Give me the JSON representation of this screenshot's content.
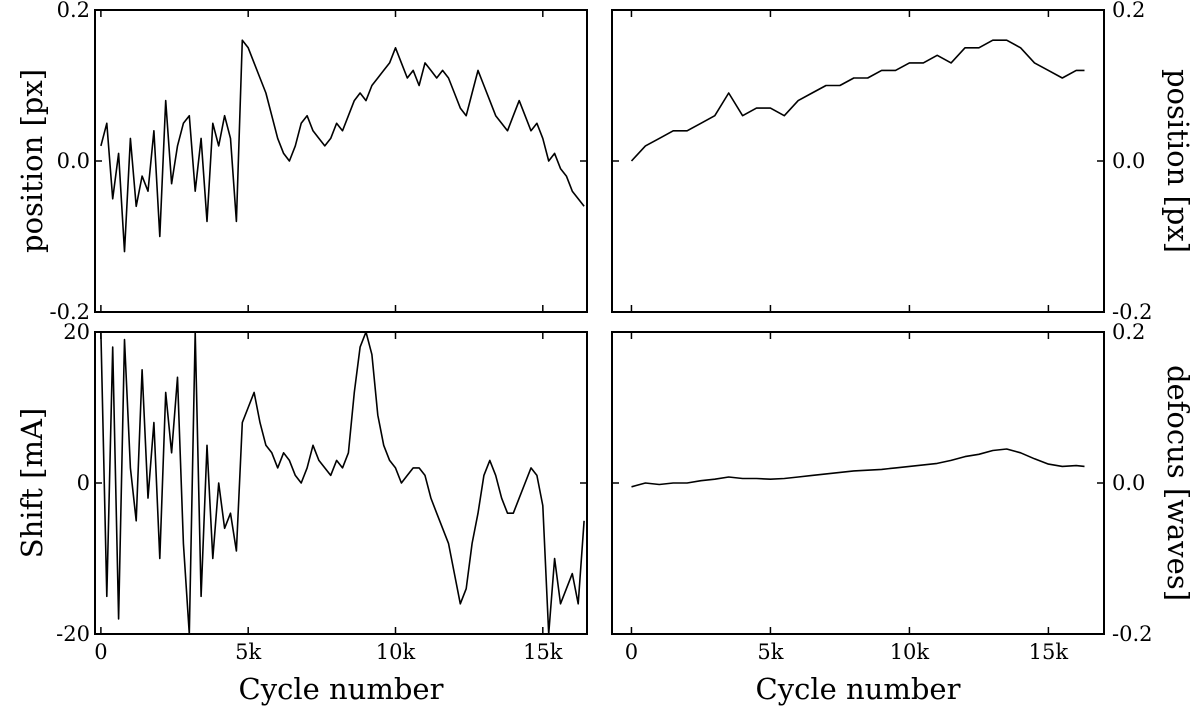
{
  "chart_data": [
    {
      "type": "line",
      "panel": "top-left",
      "xlabel": "",
      "ylabel": "position [px]",
      "xlim": [
        -200,
        16500
      ],
      "ylim": [
        -0.2,
        0.2
      ],
      "yticks": [
        {
          "v": -0.2,
          "label": "-0.2"
        },
        {
          "v": 0.0,
          "label": "0.0"
        },
        {
          "v": 0.2,
          "label": "0.2"
        }
      ],
      "xticks": [
        {
          "v": 0,
          "label": ""
        },
        {
          "v": 5000,
          "label": ""
        },
        {
          "v": 10000,
          "label": ""
        },
        {
          "v": 15000,
          "label": ""
        }
      ],
      "series": [
        {
          "x": [
            0,
            200,
            400,
            600,
            800,
            1000,
            1200,
            1400,
            1600,
            1800,
            2000,
            2200,
            2400,
            2600,
            2800,
            3000,
            3200,
            3400,
            3600,
            3800,
            4000,
            4200,
            4400,
            4600,
            4800,
            5000,
            5200,
            5400,
            5600,
            5800,
            6000,
            6200,
            6400,
            6600,
            6800,
            7000,
            7200,
            7400,
            7600,
            7800,
            8000,
            8200,
            8400,
            8600,
            8800,
            9000,
            9200,
            9400,
            9600,
            9800,
            10000,
            10200,
            10400,
            10600,
            10800,
            11000,
            11200,
            11400,
            11600,
            11800,
            12000,
            12200,
            12400,
            12600,
            12800,
            13000,
            13200,
            13400,
            13600,
            13800,
            14000,
            14200,
            14400,
            14600,
            14800,
            15000,
            15200,
            15400,
            15600,
            15800,
            16000,
            16200,
            16400
          ],
          "y": [
            0.02,
            0.05,
            -0.05,
            0.01,
            -0.12,
            0.03,
            -0.06,
            -0.02,
            -0.04,
            0.04,
            -0.1,
            0.08,
            -0.03,
            0.02,
            0.05,
            0.06,
            -0.04,
            0.03,
            -0.08,
            0.05,
            0.02,
            0.06,
            0.03,
            -0.08,
            0.16,
            0.15,
            0.13,
            0.11,
            0.09,
            0.06,
            0.03,
            0.01,
            0.0,
            0.02,
            0.05,
            0.06,
            0.04,
            0.03,
            0.02,
            0.03,
            0.05,
            0.04,
            0.06,
            0.08,
            0.09,
            0.08,
            0.1,
            0.11,
            0.12,
            0.13,
            0.15,
            0.13,
            0.11,
            0.12,
            0.1,
            0.13,
            0.12,
            0.11,
            0.12,
            0.11,
            0.09,
            0.07,
            0.06,
            0.09,
            0.12,
            0.1,
            0.08,
            0.06,
            0.05,
            0.04,
            0.06,
            0.08,
            0.06,
            0.04,
            0.05,
            0.03,
            0.0,
            0.01,
            -0.01,
            -0.02,
            -0.04,
            -0.05,
            -0.06
          ]
        }
      ]
    },
    {
      "type": "line",
      "panel": "top-right",
      "xlabel": "",
      "ylabel": "position [px]",
      "xlim": [
        -700,
        17000
      ],
      "ylim": [
        -0.2,
        0.2
      ],
      "yticks": [
        {
          "v": -0.2,
          "label": "-0.2"
        },
        {
          "v": 0.0,
          "label": "0.0"
        },
        {
          "v": 0.2,
          "label": "0.2"
        }
      ],
      "xticks": [
        {
          "v": 0,
          "label": ""
        },
        {
          "v": 5000,
          "label": ""
        },
        {
          "v": 10000,
          "label": ""
        },
        {
          "v": 15000,
          "label": ""
        }
      ],
      "series": [
        {
          "x": [
            0,
            500,
            1000,
            1500,
            2000,
            2500,
            3000,
            3500,
            4000,
            4500,
            5000,
            5500,
            6000,
            6500,
            7000,
            7500,
            8000,
            8500,
            9000,
            9500,
            10000,
            10500,
            11000,
            11500,
            12000,
            12500,
            13000,
            13500,
            14000,
            14500,
            15000,
            15500,
            16000,
            16300
          ],
          "y": [
            0.0,
            0.02,
            0.03,
            0.04,
            0.04,
            0.05,
            0.06,
            0.09,
            0.06,
            0.07,
            0.07,
            0.06,
            0.08,
            0.09,
            0.1,
            0.1,
            0.11,
            0.11,
            0.12,
            0.12,
            0.13,
            0.13,
            0.14,
            0.13,
            0.15,
            0.15,
            0.16,
            0.16,
            0.15,
            0.13,
            0.12,
            0.11,
            0.12,
            0.12
          ]
        }
      ]
    },
    {
      "type": "line",
      "panel": "bottom-left",
      "xlabel": "Cycle number",
      "ylabel": "Shift [mA]",
      "xlim": [
        -200,
        16500
      ],
      "ylim": [
        -20,
        20
      ],
      "yticks": [
        {
          "v": -20,
          "label": "-20"
        },
        {
          "v": 0,
          "label": "0"
        },
        {
          "v": 20,
          "label": "20"
        }
      ],
      "xticks": [
        {
          "v": 0,
          "label": "0"
        },
        {
          "v": 5000,
          "label": "5k"
        },
        {
          "v": 10000,
          "label": "10k"
        },
        {
          "v": 15000,
          "label": "15k"
        }
      ],
      "series": [
        {
          "x": [
            0,
            200,
            400,
            600,
            800,
            1000,
            1200,
            1400,
            1600,
            1800,
            2000,
            2200,
            2400,
            2600,
            2800,
            3000,
            3200,
            3400,
            3600,
            3800,
            4000,
            4200,
            4400,
            4600,
            4800,
            5000,
            5200,
            5400,
            5600,
            5800,
            6000,
            6200,
            6400,
            6600,
            6800,
            7000,
            7200,
            7400,
            7600,
            7800,
            8000,
            8200,
            8400,
            8600,
            8800,
            9000,
            9200,
            9400,
            9600,
            9800,
            10000,
            10200,
            10400,
            10600,
            10800,
            11000,
            11200,
            11400,
            11600,
            11800,
            12000,
            12200,
            12400,
            12600,
            12800,
            13000,
            13200,
            13400,
            13600,
            13800,
            14000,
            14200,
            14400,
            14600,
            14800,
            15000,
            15200,
            15400,
            15600,
            15800,
            16000,
            16200,
            16400
          ],
          "y": [
            20,
            -15,
            18,
            -18,
            19,
            2,
            -5,
            15,
            -2,
            8,
            -10,
            12,
            4,
            14,
            -8,
            -20,
            20,
            -15,
            5,
            -10,
            0,
            -6,
            -4,
            -9,
            8,
            10,
            12,
            8,
            5,
            4,
            2,
            4,
            3,
            1,
            0,
            2,
            5,
            3,
            2,
            1,
            3,
            2,
            4,
            12,
            18,
            20,
            17,
            9,
            5,
            3,
            2,
            0,
            1,
            2,
            2,
            1,
            -2,
            -4,
            -6,
            -8,
            -12,
            -16,
            -14,
            -8,
            -4,
            1,
            3,
            1,
            -2,
            -4,
            -4,
            -2,
            0,
            2,
            1,
            -3,
            -20,
            -10,
            -16,
            -14,
            -12,
            -16,
            -5
          ]
        }
      ]
    },
    {
      "type": "line",
      "panel": "bottom-right",
      "xlabel": "Cycle number",
      "ylabel": "defocus [waves]",
      "xlim": [
        -700,
        17000
      ],
      "ylim": [
        -0.2,
        0.2
      ],
      "yticks": [
        {
          "v": -0.2,
          "label": "-0.2"
        },
        {
          "v": 0.0,
          "label": "0.0"
        },
        {
          "v": 0.2,
          "label": "0.2"
        }
      ],
      "xticks": [
        {
          "v": 0,
          "label": "0"
        },
        {
          "v": 5000,
          "label": "5k"
        },
        {
          "v": 10000,
          "label": "10k"
        },
        {
          "v": 15000,
          "label": "15k"
        }
      ],
      "series": [
        {
          "x": [
            0,
            500,
            1000,
            1500,
            2000,
            2500,
            3000,
            3500,
            4000,
            4500,
            5000,
            5500,
            6000,
            6500,
            7000,
            7500,
            8000,
            8500,
            9000,
            9500,
            10000,
            10500,
            11000,
            11500,
            12000,
            12500,
            13000,
            13500,
            14000,
            14500,
            15000,
            15500,
            16000,
            16300
          ],
          "y": [
            -0.005,
            0.0,
            -0.002,
            0.0,
            0.0,
            0.003,
            0.005,
            0.008,
            0.006,
            0.006,
            0.005,
            0.006,
            0.008,
            0.01,
            0.012,
            0.014,
            0.016,
            0.017,
            0.018,
            0.02,
            0.022,
            0.024,
            0.026,
            0.03,
            0.035,
            0.038,
            0.043,
            0.045,
            0.04,
            0.032,
            0.025,
            0.022,
            0.023,
            0.022
          ]
        }
      ]
    }
  ]
}
